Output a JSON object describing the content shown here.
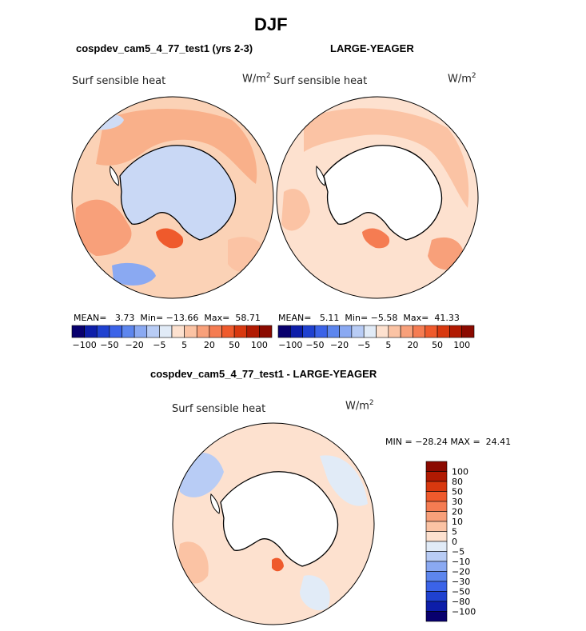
{
  "header": {
    "title": "DJF",
    "left_model": "cospdev_cam5_4_77_test1 (yrs 2-3)",
    "right_model": "LARGE-YEAGER",
    "diff_title": "cospdev_cam5_4_77_test1 - LARGE-YEAGER"
  },
  "panels": {
    "left": {
      "variable": "Surf sensible heat",
      "units": "W/m",
      "units_exp": "2",
      "mean_label": "MEAN=",
      "mean": "3.73",
      "min_label": "Min=",
      "min": "−13.66",
      "max_label": "Max=",
      "max": "58.71"
    },
    "right": {
      "variable": "Surf sensible heat",
      "units": "W/m",
      "units_exp": "2",
      "mean_label": "MEAN=",
      "mean": "5.11",
      "min_label": "Min=",
      "min": "−5.58",
      "max_label": "Max=",
      "max": "41.33"
    },
    "diff": {
      "variable": "Surf sensible heat",
      "units": "W/m",
      "units_exp": "2",
      "min_label": "MIN =",
      "min": "−28.24",
      "max_label": "MAX =",
      "max": "24.41"
    }
  },
  "chart_data": [
    {
      "type": "heatmap",
      "projection": "south-polar-stereographic",
      "title": "cospdev_cam5_4_77_test1 (yrs 2-3)",
      "variable": "Surf sensible heat",
      "units": "W/m2",
      "stats": {
        "mean": 3.73,
        "min": -13.66,
        "max": 58.71
      },
      "colorbar": {
        "orientation": "horizontal",
        "colors": [
          "#08006e",
          "#0d1ea9",
          "#1f41d0",
          "#3b63e8",
          "#5d86ee",
          "#8aa9f2",
          "#b8ccf5",
          "#e1ebf7",
          "#fde1cf",
          "#fbc3a4",
          "#f8a07a",
          "#f57c52",
          "#ef5a2c",
          "#d8380f",
          "#b11a02",
          "#8b0a00"
        ],
        "tick_labels": [
          "−100",
          "−50",
          "−20",
          "−5",
          "5",
          "20",
          "50",
          "100"
        ]
      }
    },
    {
      "type": "heatmap",
      "projection": "south-polar-stereographic",
      "title": "LARGE-YEAGER",
      "variable": "Surf sensible heat",
      "units": "W/m2",
      "stats": {
        "mean": 5.11,
        "min": -5.58,
        "max": 41.33
      },
      "colorbar": {
        "orientation": "horizontal",
        "colors": [
          "#08006e",
          "#0d1ea9",
          "#1f41d0",
          "#3b63e8",
          "#5d86ee",
          "#8aa9f2",
          "#b8ccf5",
          "#e1ebf7",
          "#fde1cf",
          "#fbc3a4",
          "#f8a07a",
          "#f57c52",
          "#ef5a2c",
          "#d8380f",
          "#b11a02",
          "#8b0a00"
        ],
        "tick_labels": [
          "−100",
          "−50",
          "−20",
          "−5",
          "5",
          "20",
          "50",
          "100"
        ]
      }
    },
    {
      "type": "heatmap",
      "projection": "south-polar-stereographic",
      "title": "cospdev_cam5_4_77_test1 - LARGE-YEAGER",
      "variable": "Surf sensible heat",
      "units": "W/m2",
      "stats": {
        "min": -28.24,
        "max": 24.41
      },
      "colorbar": {
        "orientation": "vertical",
        "colors": [
          "#08006e",
          "#0d1ea9",
          "#1f41d0",
          "#3b63e8",
          "#5d86ee",
          "#8aa9f2",
          "#b8ccf5",
          "#e1ebf7",
          "#fde1cf",
          "#fbc3a4",
          "#f8a07a",
          "#f57c52",
          "#ef5a2c",
          "#d8380f",
          "#b11a02",
          "#8b0a00"
        ],
        "tick_labels": [
          "−100",
          "−80",
          "−50",
          "−30",
          "−20",
          "−10",
          "−5",
          "0",
          "5",
          "10",
          "20",
          "30",
          "50",
          "80",
          "100"
        ]
      }
    }
  ],
  "colors": {
    "land": "#ffffff",
    "outline": "#000000"
  }
}
